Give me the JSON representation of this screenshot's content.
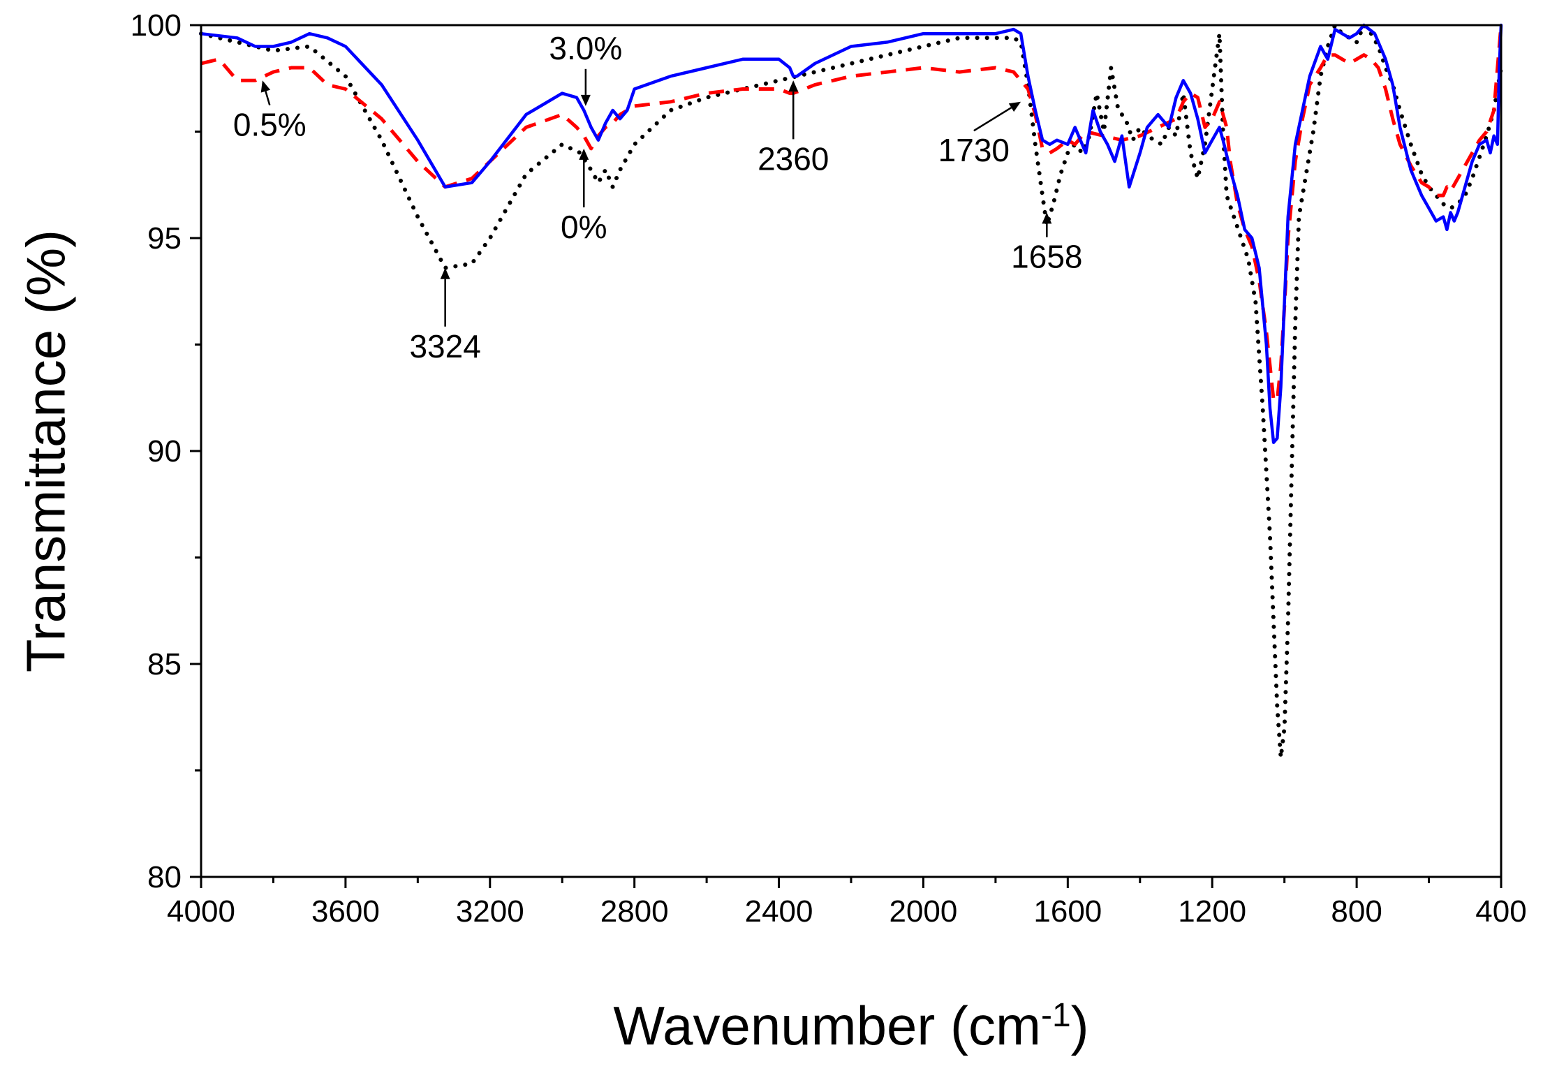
{
  "chart_data": {
    "type": "line",
    "title": "",
    "xlabel": "Wavenumber (cm",
    "xlabel_sup": "-1",
    "xlabel_close": ")",
    "ylabel": "Transmittance (%)",
    "xlim": [
      4000,
      400
    ],
    "ylim": [
      80,
      100
    ],
    "xticks": [
      4000,
      3600,
      3200,
      2800,
      2400,
      2000,
      1600,
      1200,
      800,
      400
    ],
    "xtick_labels": [
      "4000",
      "3600",
      "3200",
      "2800",
      "2400",
      "2000",
      "1600",
      "1200",
      "800",
      "400"
    ],
    "yticks": [
      80,
      85,
      90,
      95,
      100
    ],
    "ytick_labels": [
      "80",
      "85",
      "90",
      "95",
      "100"
    ],
    "colors": {
      "solid": "#0000ff",
      "dashed": "#ff0000",
      "dotted": "#000000"
    },
    "series": [
      {
        "name": "3.0%",
        "style": "solid",
        "x": [
          4000,
          3900,
          3850,
          3800,
          3750,
          3700,
          3650,
          3600,
          3500,
          3400,
          3324,
          3250,
          3200,
          3100,
          3000,
          2960,
          2940,
          2920,
          2900,
          2880,
          2860,
          2840,
          2820,
          2800,
          2700,
          2600,
          2500,
          2400,
          2370,
          2360,
          2350,
          2300,
          2200,
          2100,
          2000,
          1900,
          1800,
          1750,
          1730,
          1710,
          1690,
          1670,
          1650,
          1630,
          1600,
          1580,
          1550,
          1530,
          1510,
          1490,
          1470,
          1450,
          1430,
          1400,
          1380,
          1350,
          1320,
          1300,
          1280,
          1260,
          1240,
          1220,
          1200,
          1180,
          1170,
          1150,
          1130,
          1110,
          1090,
          1070,
          1050,
          1040,
          1030,
          1020,
          1010,
          1000,
          990,
          970,
          950,
          930,
          900,
          880,
          860,
          840,
          820,
          800,
          780,
          750,
          720,
          700,
          680,
          650,
          620,
          600,
          580,
          560,
          550,
          540,
          530,
          520,
          510,
          500,
          490,
          480,
          460,
          440,
          430,
          420,
          410,
          405,
          400
        ],
        "y": [
          99.8,
          99.7,
          99.5,
          99.5,
          99.6,
          99.8,
          99.7,
          99.5,
          98.6,
          97.3,
          96.2,
          96.3,
          96.8,
          97.9,
          98.4,
          98.3,
          98.0,
          97.6,
          97.3,
          97.7,
          98.0,
          97.8,
          98.0,
          98.5,
          98.8,
          99.0,
          99.2,
          99.2,
          99.0,
          98.8,
          98.8,
          99.1,
          99.5,
          99.6,
          99.8,
          99.8,
          99.8,
          99.9,
          99.8,
          98.8,
          98.0,
          97.3,
          97.2,
          97.3,
          97.2,
          97.6,
          97.0,
          98.0,
          97.5,
          97.2,
          96.8,
          97.4,
          96.2,
          97.0,
          97.6,
          97.9,
          97.6,
          98.3,
          98.7,
          98.4,
          97.8,
          97.0,
          97.3,
          97.6,
          97.3,
          96.6,
          96.0,
          95.2,
          95.0,
          94.3,
          92.5,
          91.0,
          90.2,
          90.3,
          91.5,
          93.5,
          95.5,
          97.2,
          98.0,
          98.8,
          99.5,
          99.2,
          99.9,
          99.8,
          99.7,
          99.8,
          100.0,
          99.8,
          99.2,
          98.6,
          97.6,
          96.6,
          96.0,
          95.7,
          95.4,
          95.5,
          95.2,
          95.6,
          95.4,
          95.6,
          95.9,
          96.2,
          96.5,
          96.8,
          97.2,
          97.3,
          97.0,
          97.4,
          97.2,
          99.0,
          100.0
        ]
      },
      {
        "name": "0.5%",
        "style": "dashed",
        "x": [
          4000,
          3950,
          3900,
          3850,
          3800,
          3750,
          3700,
          3650,
          3600,
          3500,
          3400,
          3324,
          3250,
          3200,
          3100,
          3000,
          2960,
          2940,
          2920,
          2900,
          2880,
          2860,
          2840,
          2800,
          2700,
          2600,
          2500,
          2400,
          2370,
          2360,
          2300,
          2200,
          2100,
          2000,
          1900,
          1800,
          1750,
          1730,
          1710,
          1690,
          1670,
          1650,
          1630,
          1600,
          1580,
          1550,
          1500,
          1450,
          1400,
          1350,
          1300,
          1280,
          1260,
          1240,
          1220,
          1200,
          1180,
          1160,
          1150,
          1130,
          1110,
          1090,
          1070,
          1050,
          1040,
          1030,
          1020,
          1010,
          1000,
          990,
          970,
          950,
          930,
          900,
          880,
          860,
          840,
          820,
          800,
          780,
          760,
          740,
          720,
          700,
          680,
          650,
          620,
          600,
          580,
          560,
          550,
          540,
          520,
          500,
          480,
          460,
          440,
          420,
          410,
          400
        ],
        "y": [
          99.1,
          99.2,
          98.7,
          98.7,
          98.9,
          99.0,
          99.0,
          98.6,
          98.5,
          97.8,
          96.8,
          96.2,
          96.4,
          96.8,
          97.6,
          97.9,
          97.6,
          97.4,
          97.1,
          97.4,
          97.6,
          97.7,
          97.9,
          98.1,
          98.2,
          98.4,
          98.5,
          98.5,
          98.4,
          98.4,
          98.6,
          98.8,
          98.9,
          99.0,
          98.9,
          99.0,
          98.9,
          98.7,
          98.5,
          97.9,
          97.1,
          97.0,
          97.1,
          97.3,
          97.2,
          97.5,
          97.4,
          97.3,
          97.4,
          97.6,
          97.8,
          98.2,
          98.4,
          98.3,
          97.6,
          97.8,
          98.2,
          97.6,
          96.8,
          95.8,
          95.2,
          94.8,
          94.0,
          92.8,
          92.0,
          91.2,
          91.2,
          92.0,
          93.4,
          95.0,
          96.8,
          97.8,
          98.6,
          99.0,
          99.3,
          99.3,
          99.2,
          99.1,
          99.2,
          99.3,
          99.2,
          99.0,
          98.5,
          97.8,
          97.2,
          96.7,
          96.3,
          96.2,
          96.0,
          96.0,
          96.2,
          96.1,
          96.4,
          96.7,
          97.0,
          97.3,
          97.5,
          98.0,
          99.0,
          100.0
        ]
      },
      {
        "name": "0%",
        "style": "dotted",
        "x": [
          4000,
          3900,
          3800,
          3700,
          3600,
          3500,
          3400,
          3324,
          3250,
          3200,
          3100,
          3000,
          2950,
          2920,
          2900,
          2880,
          2860,
          2840,
          2800,
          2700,
          2600,
          2500,
          2400,
          2300,
          2200,
          2100,
          2000,
          1900,
          1800,
          1750,
          1730,
          1710,
          1690,
          1670,
          1658,
          1640,
          1620,
          1600,
          1580,
          1560,
          1540,
          1520,
          1500,
          1480,
          1460,
          1440,
          1420,
          1400,
          1380,
          1360,
          1340,
          1320,
          1300,
          1280,
          1260,
          1240,
          1220,
          1200,
          1180,
          1170,
          1160,
          1140,
          1120,
          1100,
          1080,
          1060,
          1040,
          1030,
          1020,
          1010,
          1000,
          990,
          980,
          970,
          960,
          940,
          920,
          900,
          880,
          860,
          840,
          820,
          800,
          780,
          760,
          740,
          720,
          700,
          680,
          650,
          620,
          600,
          580,
          560,
          540,
          520,
          500,
          480,
          460,
          440,
          420,
          400
        ],
        "y": [
          99.8,
          99.6,
          99.4,
          99.5,
          98.8,
          97.3,
          95.5,
          94.3,
          94.4,
          95.0,
          96.5,
          97.2,
          97.0,
          96.6,
          96.3,
          96.6,
          96.2,
          96.6,
          97.2,
          98.0,
          98.3,
          98.5,
          98.7,
          98.9,
          99.1,
          99.3,
          99.5,
          99.7,
          99.7,
          99.7,
          99.6,
          98.6,
          97.2,
          96.0,
          95.3,
          95.8,
          96.5,
          97.0,
          97.2,
          97.0,
          97.4,
          98.4,
          97.5,
          99.0,
          98.0,
          97.8,
          97.3,
          97.6,
          97.4,
          97.3,
          97.2,
          97.6,
          97.4,
          98.4,
          97.0,
          96.4,
          97.2,
          98.5,
          99.8,
          97.5,
          96.0,
          95.5,
          95.0,
          94.5,
          93.5,
          91.0,
          88.0,
          86.0,
          84.0,
          82.8,
          83.5,
          86.0,
          89.5,
          93.0,
          95.5,
          96.5,
          97.5,
          98.8,
          99.5,
          100.0,
          99.8,
          99.7,
          99.6,
          100.0,
          99.8,
          99.5,
          99.0,
          98.6,
          98.0,
          97.2,
          96.5,
          96.2,
          96.0,
          95.8,
          95.7,
          95.8,
          96.0,
          96.4,
          96.9,
          97.4,
          98.0,
          99.0
        ]
      }
    ],
    "annotations": [
      {
        "text": "3324",
        "target_x": 3324,
        "target_y": 94.3,
        "label_x": 3324,
        "label_y": 92.2
      },
      {
        "text": "0.5%",
        "target_x": 3830,
        "target_y": 98.7,
        "label_x": 3810,
        "label_y": 97.4
      },
      {
        "text": "3.0%",
        "target_x": 2935,
        "target_y": 98.1,
        "label_x": 2935,
        "label_y": 99.2
      },
      {
        "text": "0%",
        "target_x": 2940,
        "target_y": 97.1,
        "label_x": 2940,
        "label_y": 95.0
      },
      {
        "text": "2360",
        "target_x": 2360,
        "target_y": 98.7,
        "label_x": 2360,
        "label_y": 96.6
      },
      {
        "text": "1730",
        "target_x": 1730,
        "target_y": 98.2,
        "label_x": 1860,
        "label_y": 96.8
      },
      {
        "text": "1658",
        "target_x": 1658,
        "target_y": 95.6,
        "label_x": 1658,
        "label_y": 94.3
      }
    ]
  }
}
